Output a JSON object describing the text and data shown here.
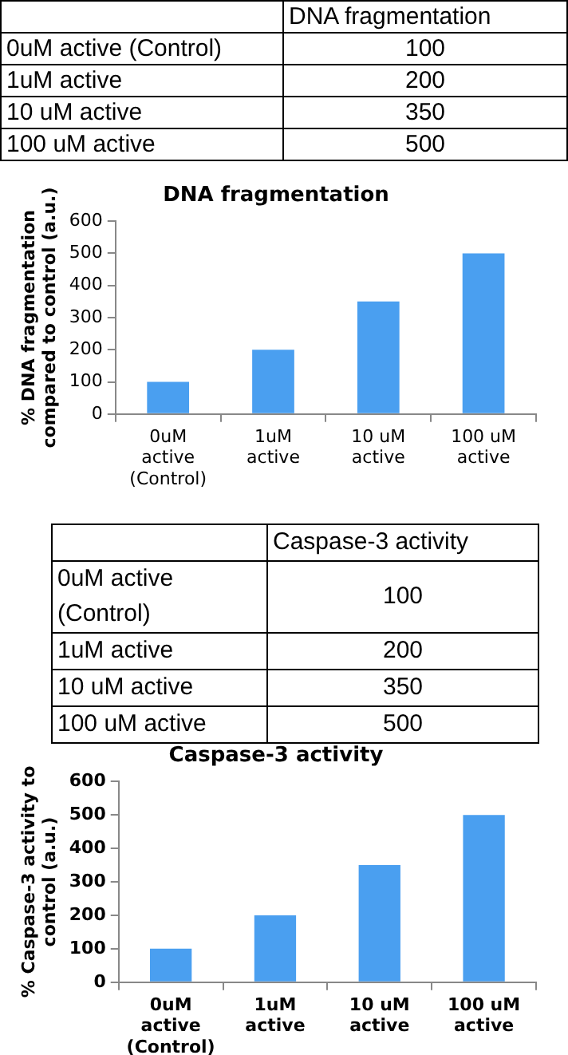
{
  "chart_data": [
    {
      "type": "heatmap",
      "categories": [
        "DNA fragmentation"
      ],
      "y_categories": [
        "0uM active (Control)",
        "1uM active",
        "10 uM active",
        "100 uM active"
      ],
      "cells": [
        [
          100
        ],
        [
          200
        ],
        [
          350
        ],
        [
          500
        ]
      ],
      "data_labels": true
    },
    {
      "type": "bar",
      "title": "DNA fragmentation",
      "ylabel": "% DNA fragmentation compared to control (a.u.)",
      "categories": [
        "0uM active (Control)",
        "1uM active",
        "10 uM active",
        "100 uM active"
      ],
      "values": [
        100,
        200,
        350,
        500
      ],
      "color": "#4a9ff0",
      "ylim": [
        0,
        600
      ],
      "yticks": [
        0,
        100,
        200,
        300,
        400,
        500,
        600
      ],
      "grid": false,
      "legend": false
    },
    {
      "type": "heatmap",
      "categories": [
        "Caspase-3 activity"
      ],
      "y_categories": [
        "0uM active (Control)",
        "1uM active",
        "10 uM active",
        "100 uM active"
      ],
      "cells": [
        [
          100
        ],
        [
          200
        ],
        [
          350
        ],
        [
          500
        ]
      ],
      "data_labels": true
    },
    {
      "type": "bar",
      "title": "Caspase-3 activity",
      "ylabel": "% Caspase-3 activity to control (a.u.)",
      "categories": [
        "0uM active (Control)",
        "1uM active",
        "10 uM active",
        "100 uM active"
      ],
      "values": [
        100,
        200,
        350,
        500
      ],
      "color": "#4a9ff0",
      "ylim": [
        0,
        600
      ],
      "yticks": [
        0,
        100,
        200,
        300,
        400,
        500,
        600
      ],
      "grid": false,
      "legend": false
    }
  ]
}
